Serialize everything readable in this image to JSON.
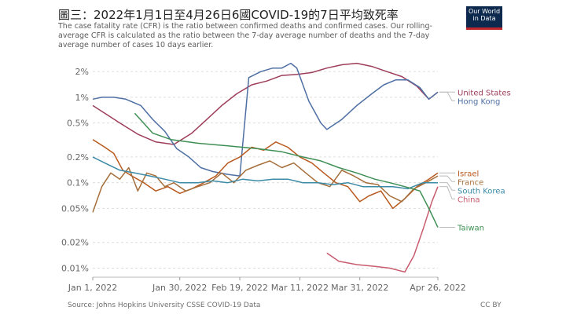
{
  "title": "圖三：2022年1月1日至4月26日6國COVID-19的7日平均致死率",
  "subtitle": "The case fatality rate (CFR) is the ratio between confirmed deaths and confirmed cases. Our rolling-average CFR is calculated as the ratio between the 7-day average number of deaths and the 7-day average number of cases 10 days earlier.",
  "logo": {
    "line1": "Our World",
    "line2": "in Data"
  },
  "footer": {
    "source": "Source: Johns Hopkins University CSSE COVID-19 Data",
    "license": "CC BY"
  },
  "colors": {
    "grid": "#dddddd",
    "tick": "#666666",
    "brand": "#0d2a4e",
    "brand_accent": "#c0272d"
  },
  "chart_data": {
    "type": "line",
    "yscale": "log",
    "ylim": [
      0.008,
      3
    ],
    "xlim": [
      "2022-01-01",
      "2022-04-26"
    ],
    "grid": true,
    "legend": "right",
    "yticks": [
      0.01,
      0.02,
      0.05,
      0.1,
      0.2,
      0.5,
      1,
      2
    ],
    "ytick_labels": [
      "0.01%",
      "0.02%",
      "0.05%",
      "0.1%",
      "0.2%",
      "0.5%",
      "1%",
      "2%"
    ],
    "xticks": [
      "2022-01-01",
      "2022-01-30",
      "2022-02-19",
      "2022-03-11",
      "2022-03-31",
      "2022-04-26"
    ],
    "xtick_labels": [
      "Jan 1, 2022",
      "Jan 30, 2022",
      "Feb 19, 2022",
      "Mar 11, 2022",
      "Mar 31, 2022",
      "Apr 26, 2022"
    ],
    "series": [
      {
        "name": "United States",
        "color": "#9e3d5a",
        "points": [
          [
            "2022-01-01",
            0.8
          ],
          [
            "2022-01-05",
            0.65
          ],
          [
            "2022-01-10",
            0.5
          ],
          [
            "2022-01-16",
            0.37
          ],
          [
            "2022-01-22",
            0.3
          ],
          [
            "2022-01-28",
            0.28
          ],
          [
            "2022-02-03",
            0.38
          ],
          [
            "2022-02-08",
            0.55
          ],
          [
            "2022-02-13",
            0.8
          ],
          [
            "2022-02-18",
            1.1
          ],
          [
            "2022-02-23",
            1.4
          ],
          [
            "2022-02-28",
            1.55
          ],
          [
            "2022-03-05",
            1.8
          ],
          [
            "2022-03-10",
            1.85
          ],
          [
            "2022-03-15",
            1.95
          ],
          [
            "2022-03-20",
            2.2
          ],
          [
            "2022-03-25",
            2.4
          ],
          [
            "2022-03-30",
            2.5
          ],
          [
            "2022-04-04",
            2.3
          ],
          [
            "2022-04-09",
            2.0
          ],
          [
            "2022-04-14",
            1.75
          ],
          [
            "2022-04-19",
            1.35
          ],
          [
            "2022-04-23",
            0.95
          ],
          [
            "2022-04-26",
            1.15
          ]
        ]
      },
      {
        "name": "Hong Kong",
        "color": "#4e6fa3",
        "points": [
          [
            "2022-01-01",
            0.95
          ],
          [
            "2022-01-04",
            1.0
          ],
          [
            "2022-01-08",
            1.0
          ],
          [
            "2022-01-12",
            0.95
          ],
          [
            "2022-01-17",
            0.8
          ],
          [
            "2022-01-21",
            0.55
          ],
          [
            "2022-01-25",
            0.4
          ],
          [
            "2022-01-29",
            0.25
          ],
          [
            "2022-02-02",
            0.2
          ],
          [
            "2022-02-06",
            0.15
          ],
          [
            "2022-02-10",
            0.135
          ],
          [
            "2022-02-15",
            0.125
          ],
          [
            "2022-02-19",
            0.12
          ],
          [
            "2022-02-22",
            1.7
          ],
          [
            "2022-02-26",
            2.0
          ],
          [
            "2022-03-02",
            2.2
          ],
          [
            "2022-03-05",
            2.2
          ],
          [
            "2022-03-08",
            2.5
          ],
          [
            "2022-03-10",
            2.2
          ],
          [
            "2022-03-14",
            0.9
          ],
          [
            "2022-03-18",
            0.5
          ],
          [
            "2022-03-20",
            0.42
          ],
          [
            "2022-03-25",
            0.55
          ],
          [
            "2022-03-30",
            0.8
          ],
          [
            "2022-04-04",
            1.1
          ],
          [
            "2022-04-08",
            1.4
          ],
          [
            "2022-04-12",
            1.6
          ],
          [
            "2022-04-16",
            1.6
          ],
          [
            "2022-04-20",
            1.3
          ],
          [
            "2022-04-23",
            0.95
          ],
          [
            "2022-04-26",
            1.15
          ]
        ]
      },
      {
        "name": "Israel",
        "color": "#b8591e",
        "points": [
          [
            "2022-01-01",
            0.32
          ],
          [
            "2022-01-05",
            0.26
          ],
          [
            "2022-01-08",
            0.22
          ],
          [
            "2022-01-11",
            0.14
          ],
          [
            "2022-01-14",
            0.12
          ],
          [
            "2022-01-18",
            0.1
          ],
          [
            "2022-01-22",
            0.08
          ],
          [
            "2022-01-26",
            0.09
          ],
          [
            "2022-01-30",
            0.075
          ],
          [
            "2022-02-03",
            0.085
          ],
          [
            "2022-02-07",
            0.1
          ],
          [
            "2022-02-11",
            0.12
          ],
          [
            "2022-02-15",
            0.17
          ],
          [
            "2022-02-19",
            0.2
          ],
          [
            "2022-02-23",
            0.26
          ],
          [
            "2022-02-27",
            0.24
          ],
          [
            "2022-03-03",
            0.3
          ],
          [
            "2022-03-07",
            0.26
          ],
          [
            "2022-03-11",
            0.2
          ],
          [
            "2022-03-15",
            0.17
          ],
          [
            "2022-03-19",
            0.13
          ],
          [
            "2022-03-23",
            0.1
          ],
          [
            "2022-03-27",
            0.09
          ],
          [
            "2022-03-31",
            0.06
          ],
          [
            "2022-04-03",
            0.07
          ],
          [
            "2022-04-07",
            0.08
          ],
          [
            "2022-04-11",
            0.05
          ],
          [
            "2022-04-15",
            0.065
          ],
          [
            "2022-04-19",
            0.09
          ],
          [
            "2022-04-23",
            0.11
          ],
          [
            "2022-04-26",
            0.13
          ]
        ]
      },
      {
        "name": "France",
        "color": "#a56e3a",
        "points": [
          [
            "2022-01-01",
            0.045
          ],
          [
            "2022-01-04",
            0.09
          ],
          [
            "2022-01-07",
            0.13
          ],
          [
            "2022-01-10",
            0.11
          ],
          [
            "2022-01-13",
            0.15
          ],
          [
            "2022-01-16",
            0.08
          ],
          [
            "2022-01-19",
            0.13
          ],
          [
            "2022-01-22",
            0.12
          ],
          [
            "2022-01-25",
            0.09
          ],
          [
            "2022-01-28",
            0.1
          ],
          [
            "2022-02-01",
            0.08
          ],
          [
            "2022-02-05",
            0.09
          ],
          [
            "2022-02-09",
            0.1
          ],
          [
            "2022-02-13",
            0.13
          ],
          [
            "2022-02-17",
            0.1
          ],
          [
            "2022-02-21",
            0.14
          ],
          [
            "2022-02-25",
            0.16
          ],
          [
            "2022-03-01",
            0.18
          ],
          [
            "2022-03-05",
            0.15
          ],
          [
            "2022-03-09",
            0.17
          ],
          [
            "2022-03-13",
            0.13
          ],
          [
            "2022-03-17",
            0.1
          ],
          [
            "2022-03-21",
            0.09
          ],
          [
            "2022-03-25",
            0.14
          ],
          [
            "2022-03-29",
            0.12
          ],
          [
            "2022-04-02",
            0.1
          ],
          [
            "2022-04-06",
            0.095
          ],
          [
            "2022-04-10",
            0.07
          ],
          [
            "2022-04-14",
            0.06
          ],
          [
            "2022-04-18",
            0.085
          ],
          [
            "2022-04-22",
            0.1
          ],
          [
            "2022-04-26",
            0.12
          ]
        ]
      },
      {
        "name": "South Korea",
        "color": "#3b8aa6",
        "points": [
          [
            "2022-01-01",
            0.2
          ],
          [
            "2022-01-05",
            0.17
          ],
          [
            "2022-01-10",
            0.14
          ],
          [
            "2022-01-15",
            0.13
          ],
          [
            "2022-01-20",
            0.12
          ],
          [
            "2022-01-25",
            0.11
          ],
          [
            "2022-01-30",
            0.1
          ],
          [
            "2022-02-05",
            0.1
          ],
          [
            "2022-02-10",
            0.105
          ],
          [
            "2022-02-15",
            0.1
          ],
          [
            "2022-02-20",
            0.11
          ],
          [
            "2022-02-25",
            0.105
          ],
          [
            "2022-03-02",
            0.11
          ],
          [
            "2022-03-07",
            0.11
          ],
          [
            "2022-03-12",
            0.1
          ],
          [
            "2022-03-17",
            0.1
          ],
          [
            "2022-03-22",
            0.095
          ],
          [
            "2022-03-27",
            0.1
          ],
          [
            "2022-04-01",
            0.09
          ],
          [
            "2022-04-06",
            0.09
          ],
          [
            "2022-04-11",
            0.09
          ],
          [
            "2022-04-16",
            0.085
          ],
          [
            "2022-04-21",
            0.1
          ],
          [
            "2022-04-26",
            0.1
          ]
        ]
      },
      {
        "name": "China",
        "color": "#c95b6e",
        "points": [
          [
            "2022-03-20",
            0.015
          ],
          [
            "2022-03-24",
            0.012
          ],
          [
            "2022-03-30",
            0.011
          ],
          [
            "2022-04-05",
            0.0105
          ],
          [
            "2022-04-10",
            0.01
          ],
          [
            "2022-04-15",
            0.009
          ],
          [
            "2022-04-18",
            0.014
          ],
          [
            "2022-04-21",
            0.028
          ],
          [
            "2022-04-24",
            0.06
          ],
          [
            "2022-04-26",
            0.09
          ]
        ]
      },
      {
        "name": "Taiwan",
        "color": "#3f8f55",
        "points": [
          [
            "2022-01-15",
            0.65
          ],
          [
            "2022-01-21",
            0.38
          ],
          [
            "2022-01-27",
            0.32
          ],
          [
            "2022-02-05",
            0.29
          ],
          [
            "2022-02-15",
            0.27
          ],
          [
            "2022-02-25",
            0.25
          ],
          [
            "2022-03-05",
            0.23
          ],
          [
            "2022-03-12",
            0.2
          ],
          [
            "2022-03-18",
            0.18
          ],
          [
            "2022-03-24",
            0.15
          ],
          [
            "2022-03-30",
            0.13
          ],
          [
            "2022-04-05",
            0.11
          ],
          [
            "2022-04-10",
            0.1
          ],
          [
            "2022-04-15",
            0.09
          ],
          [
            "2022-04-20",
            0.08
          ],
          [
            "2022-04-23",
            0.05
          ],
          [
            "2022-04-26",
            0.03
          ]
        ]
      }
    ]
  }
}
